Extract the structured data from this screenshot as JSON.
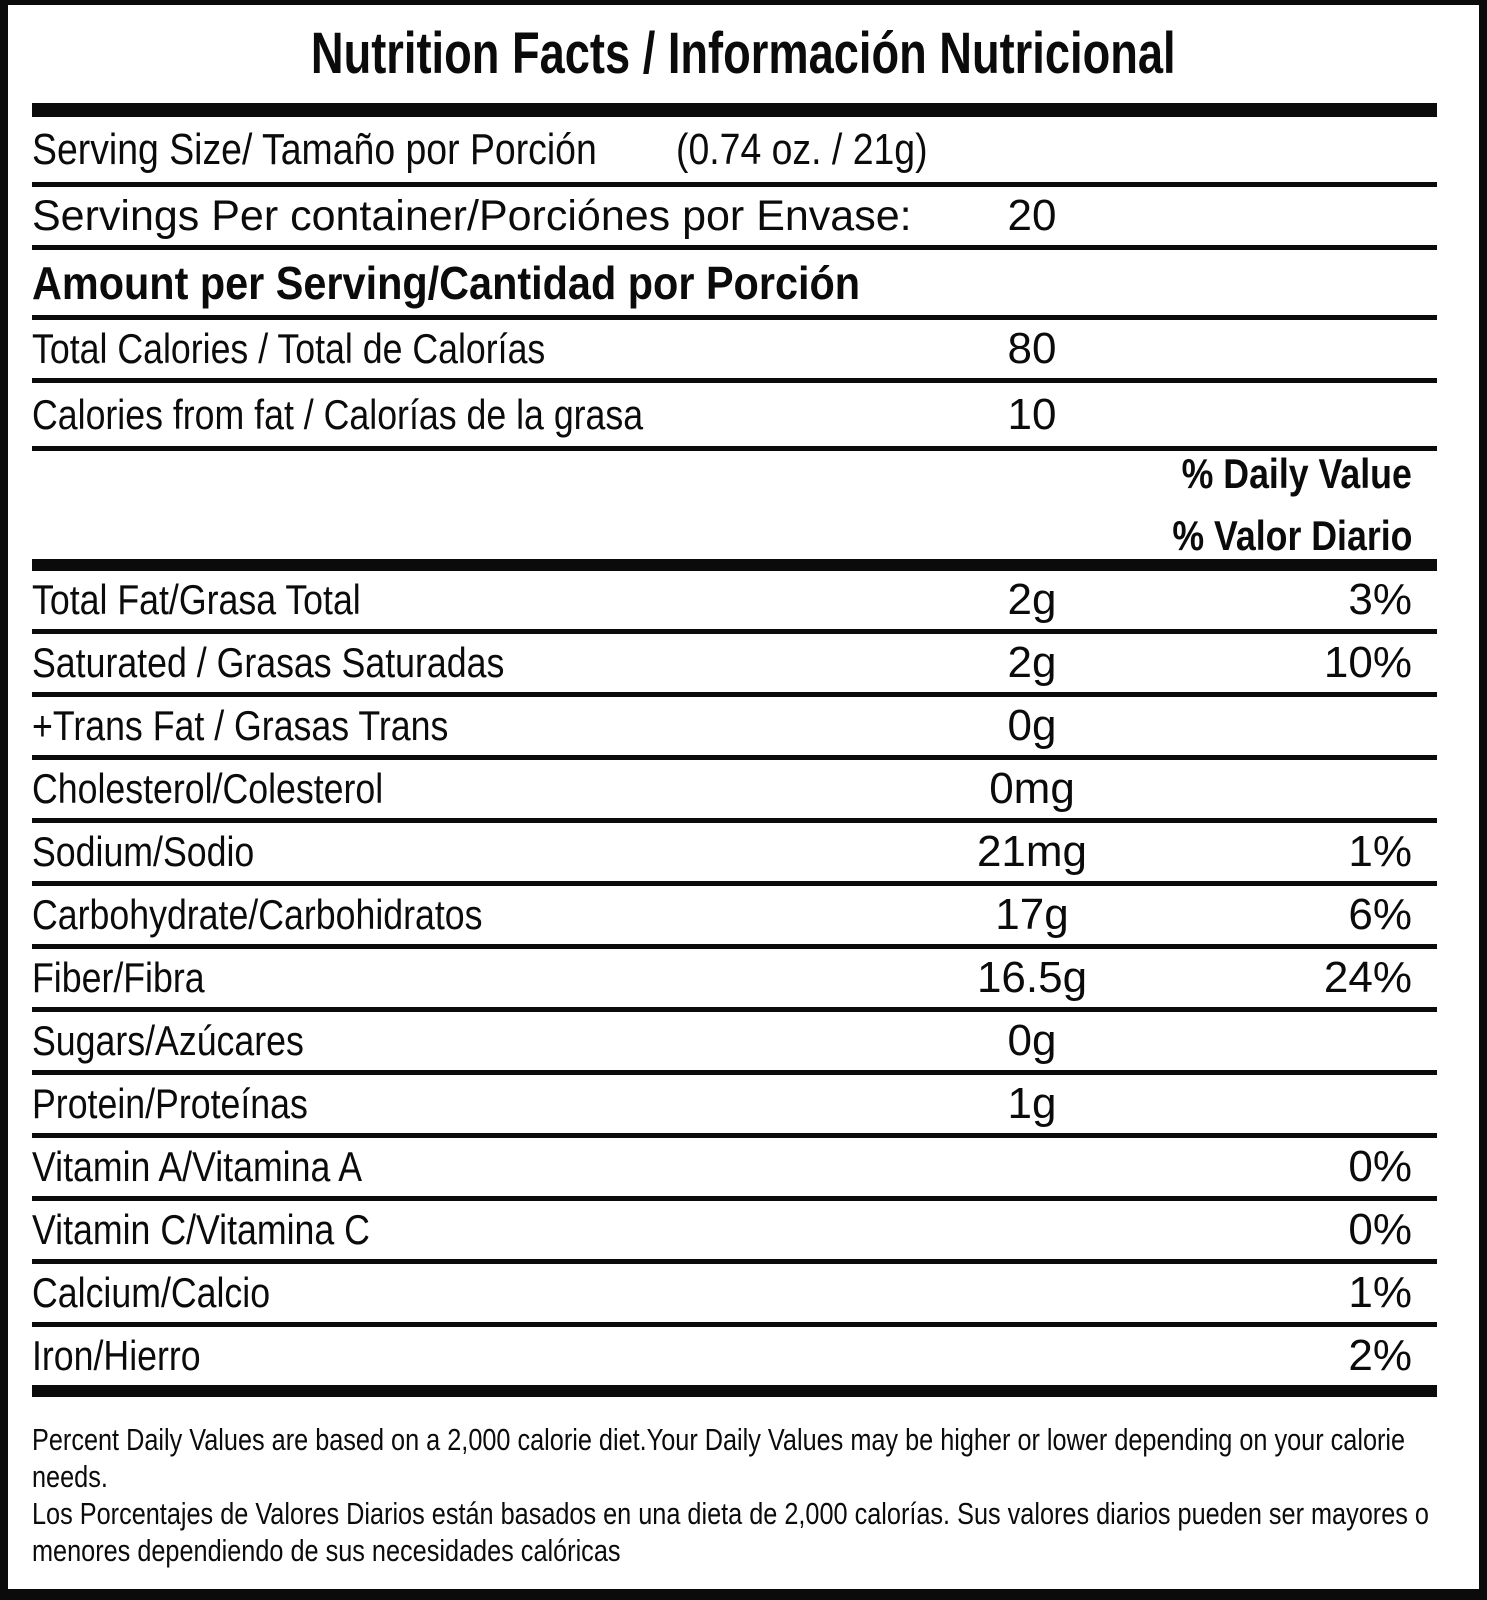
{
  "title": "Nutrition Facts / Información Nutricional",
  "serving_size": {
    "label": "Serving Size/ Tamaño por Porción",
    "value": "(0.74 oz. / 21g)"
  },
  "servings_per_container": {
    "label": "Servings Per container/Porciónes por Envase:",
    "value": "20"
  },
  "amount_per_serving_heading": "Amount per Serving/Cantidad por Porción",
  "calories": [
    {
      "label": "Total Calories / Total de Calorías",
      "value": "80"
    },
    {
      "label": "Calories from fat / Calorías de la grasa",
      "value": "10"
    }
  ],
  "daily_value_heading": {
    "en": "% Daily Value",
    "es": "% Valor Diario"
  },
  "nutrients": [
    {
      "label": "Total Fat/Grasa Total",
      "amount": "2g",
      "dv": "3%"
    },
    {
      "label": "Saturated / Grasas Saturadas",
      "amount": "2g",
      "dv": "10%"
    },
    {
      "label": "+Trans Fat / Grasas Trans",
      "amount": "0g",
      "dv": ""
    },
    {
      "label": "Cholesterol/Colesterol",
      "amount": "0mg",
      "dv": ""
    },
    {
      "label": "Sodium/Sodio",
      "amount": "21mg",
      "dv": "1%"
    },
    {
      "label": "Carbohydrate/Carbohidratos",
      "amount": "17g",
      "dv": "6%"
    },
    {
      "label": "Fiber/Fibra",
      "amount": "16.5g",
      "dv": "24%"
    },
    {
      "label": "Sugars/Azúcares",
      "amount": "0g",
      "dv": ""
    },
    {
      "label": "Protein/Proteínas",
      "amount": "1g",
      "dv": ""
    },
    {
      "label": "Vitamin A/Vitamina A",
      "amount": "",
      "dv": "0%"
    },
    {
      "label": "Vitamin C/Vitamina C",
      "amount": "",
      "dv": "0%"
    },
    {
      "label": "Calcium/Calcio",
      "amount": "",
      "dv": "1%"
    },
    {
      "label": "Iron/Hierro",
      "amount": "",
      "dv": "2%"
    }
  ],
  "footnote": {
    "english": "Percent Daily Values are based on a 2,000 calorie diet.Your Daily Values may be higher or lower depending on your calorie needs.",
    "spanish": "Los Porcentajes de Valores Diarios están basados en una dieta de 2,000 calorías. Sus valores diarios pueden ser mayores o menores dependiendo de sus necesidades calóricas"
  },
  "colors": {
    "text": "#0b0b0b",
    "background": "#ffffff",
    "rule": "#0b0b0b"
  }
}
